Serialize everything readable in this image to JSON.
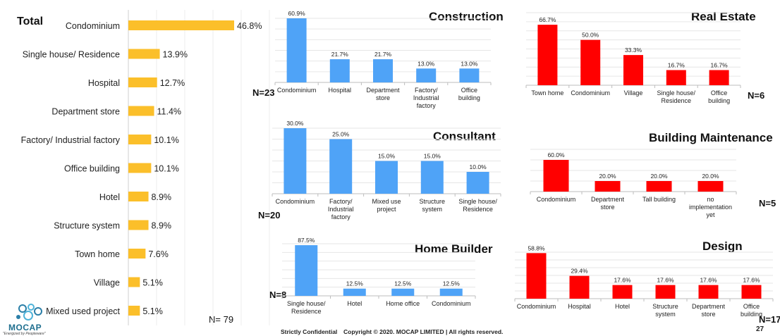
{
  "colors": {
    "total": "#FBBF2A",
    "construction": "#4FA3F7",
    "consultant": "#4FA3F7",
    "home_builder": "#4FA3F7",
    "real_estate": "#FF0000",
    "building_maintenance": "#FF0000",
    "design": "#FF0000"
  },
  "chart_data": [
    {
      "id": "total",
      "type": "bar",
      "orientation": "horizontal",
      "title": "Total",
      "n_label": "N= 79",
      "categories": [
        "Condominium",
        "Single house/ Residence",
        "Hospital",
        "Department store",
        "Factory/ Industrial factory",
        "Office building",
        "Hotel",
        "Structure system",
        "Town home",
        "Village",
        "Mixed used project"
      ],
      "values": [
        46.8,
        13.9,
        12.7,
        11.4,
        10.1,
        10.1,
        8.9,
        8.9,
        7.6,
        5.1,
        5.1
      ],
      "value_labels": [
        "46.8%",
        "13.9%",
        "12.7%",
        "11.4%",
        "10.1%",
        "10.1%",
        "8.9%",
        "8.9%",
        "7.6%",
        "5.1%",
        "5.1%"
      ],
      "xlim": [
        0,
        50
      ]
    },
    {
      "id": "construction",
      "type": "bar",
      "title": "Construction",
      "n_label": "N=23",
      "categories": [
        [
          "Condominium"
        ],
        [
          "Hospital"
        ],
        [
          "Department",
          "store"
        ],
        [
          "Factory/",
          "Industrial",
          "factory"
        ],
        [
          "Office",
          "building"
        ]
      ],
      "values": [
        60.9,
        21.7,
        21.7,
        13.0,
        13.0
      ],
      "value_labels": [
        "60.9%",
        "21.7%",
        "21.7%",
        "13.0%",
        "13.0%"
      ],
      "ylim": [
        0,
        60
      ]
    },
    {
      "id": "consultant",
      "type": "bar",
      "title": "Consultant",
      "n_label": "N=20",
      "categories": [
        [
          "Condominium"
        ],
        [
          "Factory/",
          "Industrial",
          "factory"
        ],
        [
          "Mixed use",
          "project"
        ],
        [
          "Structure",
          "system"
        ],
        [
          "Single house/",
          "Residence"
        ]
      ],
      "values": [
        30.0,
        25.0,
        15.0,
        15.0,
        10.0
      ],
      "value_labels": [
        "30.0%",
        "25.0%",
        "15.0%",
        "15.0%",
        "10.0%"
      ],
      "ylim": [
        0,
        30
      ]
    },
    {
      "id": "home_builder",
      "type": "bar",
      "title": "Home Builder",
      "n_label": "N=8",
      "categories": [
        [
          "Single house/",
          "Residence"
        ],
        [
          "Hotel"
        ],
        [
          "Home office"
        ],
        [
          "Condominium"
        ]
      ],
      "values": [
        87.5,
        12.5,
        12.5,
        12.5
      ],
      "value_labels": [
        "87.5%",
        "12.5%",
        "12.5%",
        "12.5%"
      ],
      "ylim": [
        0,
        90
      ]
    },
    {
      "id": "real_estate",
      "type": "bar",
      "title": "Real Estate",
      "n_label": "N=6",
      "categories": [
        [
          "Town home"
        ],
        [
          "Condominium"
        ],
        [
          "Village"
        ],
        [
          "Single house/",
          "Residence"
        ],
        [
          "Office",
          "building"
        ]
      ],
      "values": [
        66.7,
        50.0,
        33.3,
        16.7,
        16.7
      ],
      "value_labels": [
        "66.7%",
        "50.0%",
        "33.3%",
        "16.7%",
        "16.7%"
      ],
      "ylim": [
        0,
        80
      ]
    },
    {
      "id": "building_maintenance",
      "type": "bar",
      "title": "Building Maintenance",
      "n_label": "N=5",
      "categories": [
        [
          "Condominium"
        ],
        [
          "Department",
          "store"
        ],
        [
          "Tall building"
        ],
        [
          "no",
          "implementation",
          "yet"
        ]
      ],
      "values": [
        60.0,
        20.0,
        20.0,
        20.0
      ],
      "value_labels": [
        "60.0%",
        "20.0%",
        "20.0%",
        "20.0%"
      ],
      "ylim": [
        0,
        80
      ]
    },
    {
      "id": "design",
      "type": "bar",
      "title": "Design",
      "n_label": "N=17",
      "categories": [
        [
          "Condominium"
        ],
        [
          "Hospital"
        ],
        [
          "Hotel"
        ],
        [
          "Structure",
          "system"
        ],
        [
          "Department",
          "store"
        ],
        [
          "Office",
          "building"
        ]
      ],
      "values": [
        58.8,
        29.4,
        17.6,
        17.6,
        17.6,
        17.6
      ],
      "value_labels": [
        "58.8%",
        "29.4%",
        "17.6%",
        "17.6%",
        "17.6%",
        "17.6%"
      ],
      "ylim": [
        0,
        60
      ]
    }
  ],
  "logo": {
    "name": "MOCAP",
    "tagline": "\"Energized by Peopleware\""
  },
  "footer": {
    "confidential": "Strictly Confidential",
    "copyright": "Copyright © 2020. MOCAP LIMITED | All rights reserved.",
    "page": "27"
  }
}
